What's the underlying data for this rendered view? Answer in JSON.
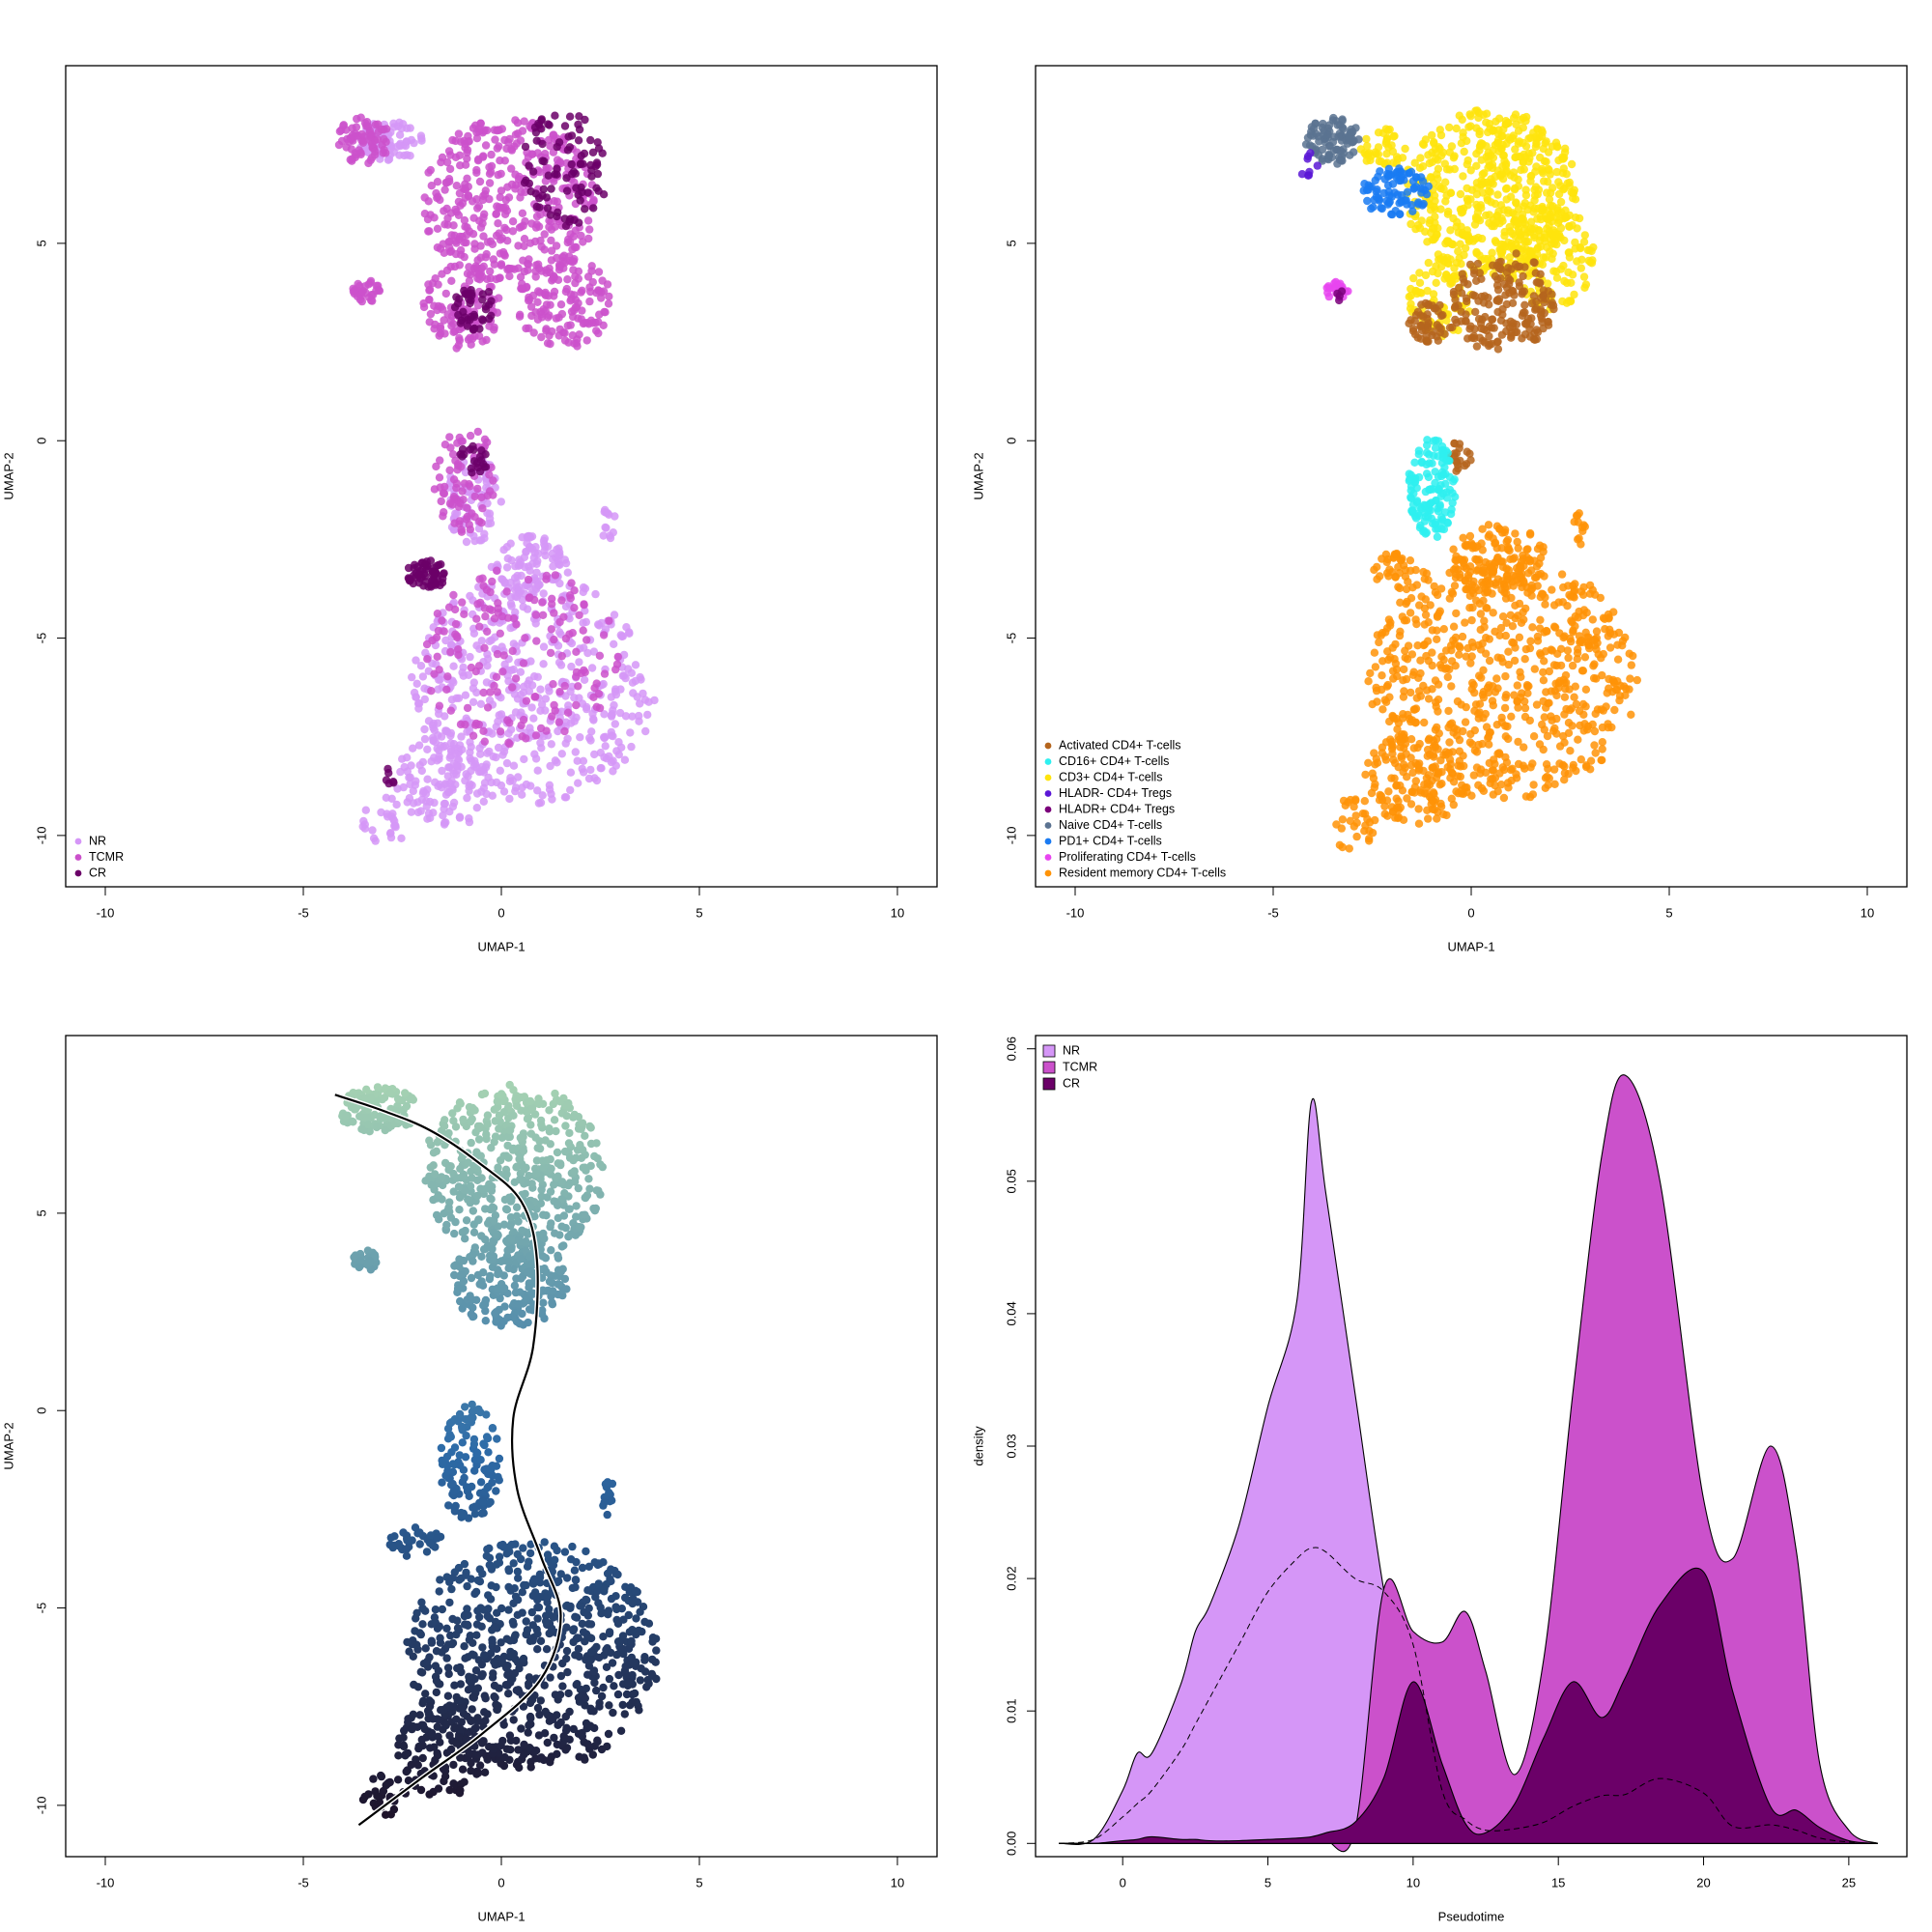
{
  "chart_data": [
    {
      "type": "scatter",
      "xlabel": "UMAP-1",
      "ylabel": "UMAP-2",
      "xlim": [
        -11,
        11
      ],
      "ylim": [
        -11.3,
        9.5
      ],
      "xticks": [
        -10,
        -5,
        0,
        5,
        10
      ],
      "yticks": [
        -10,
        -5,
        0,
        5
      ],
      "legend": {
        "placement": "bottom-left",
        "entries": [
          {
            "label": "NR",
            "color": "#D596F7"
          },
          {
            "label": "TCMR",
            "color": "#CB51CB"
          },
          {
            "label": "CR",
            "color": "#6B0068"
          }
        ]
      },
      "clusters": [
        {
          "name": "NR",
          "color": "#D596F7",
          "regions": [
            {
              "cx": 0.8,
              "cy": -6.3,
              "rx": 3.1,
              "ry": 2.9,
              "n": 520
            },
            {
              "cx": -1.4,
              "cy": -8.6,
              "rx": 1.3,
              "ry": 1.2,
              "n": 120
            },
            {
              "cx": -3.0,
              "cy": -9.7,
              "rx": 0.6,
              "ry": 0.7,
              "n": 25
            },
            {
              "cx": -0.7,
              "cy": -1.5,
              "rx": 0.7,
              "ry": 1.1,
              "n": 80
            },
            {
              "cx": -2.8,
              "cy": 7.6,
              "rx": 0.8,
              "ry": 0.5,
              "n": 80
            },
            {
              "cx": 0.7,
              "cy": -3.2,
              "rx": 1.0,
              "ry": 0.8,
              "n": 90
            },
            {
              "cx": 2.7,
              "cy": -2.2,
              "rx": 0.2,
              "ry": 0.5,
              "n": 12
            }
          ]
        },
        {
          "name": "TCMR",
          "color": "#CB51CB",
          "regions": [
            {
              "cx": 0.2,
              "cy": 6.0,
              "rx": 2.2,
              "ry": 2.2,
              "n": 420
            },
            {
              "cx": -1.0,
              "cy": 3.4,
              "rx": 1.0,
              "ry": 1.1,
              "n": 110
            },
            {
              "cx": 1.6,
              "cy": 3.5,
              "rx": 1.2,
              "ry": 1.2,
              "n": 130
            },
            {
              "cx": -3.5,
              "cy": 7.6,
              "rx": 0.7,
              "ry": 0.6,
              "n": 70
            },
            {
              "cx": -3.4,
              "cy": 3.8,
              "rx": 0.35,
              "ry": 0.3,
              "n": 30
            },
            {
              "cx": -0.9,
              "cy": -1.0,
              "rx": 0.8,
              "ry": 1.4,
              "n": 80
            },
            {
              "cx": 0.5,
              "cy": -5.5,
              "rx": 2.5,
              "ry": 2.3,
              "n": 160
            }
          ]
        },
        {
          "name": "CR",
          "color": "#6B0068",
          "regions": [
            {
              "cx": 1.6,
              "cy": 6.9,
              "rx": 1.1,
              "ry": 1.5,
              "n": 90
            },
            {
              "cx": -0.7,
              "cy": 3.4,
              "rx": 0.5,
              "ry": 0.6,
              "n": 40
            },
            {
              "cx": -1.9,
              "cy": -3.4,
              "rx": 0.5,
              "ry": 0.4,
              "n": 60
            },
            {
              "cx": -0.7,
              "cy": -0.5,
              "rx": 0.4,
              "ry": 0.4,
              "n": 20
            },
            {
              "cx": -2.8,
              "cy": -8.5,
              "rx": 0.2,
              "ry": 0.2,
              "n": 6
            }
          ]
        }
      ]
    },
    {
      "type": "scatter",
      "xlabel": "UMAP-1",
      "ylabel": "UMAP-2",
      "xlim": [
        -11,
        11
      ],
      "ylim": [
        -11.3,
        9.5
      ],
      "xticks": [
        -10,
        -5,
        0,
        5,
        10
      ],
      "yticks": [
        -10,
        -5,
        0,
        5
      ],
      "legend": {
        "placement": "bottom-left",
        "entries": [
          {
            "label": "Activated CD4+ T-cells",
            "color": "#B5651D"
          },
          {
            "label": "CD16+ CD4+ T-cells",
            "color": "#2EF0F0"
          },
          {
            "label": "CD3+ CD4+ T-cells",
            "color": "#FFE40D"
          },
          {
            "label": "HLADR- CD4+ Tregs",
            "color": "#5B17D6"
          },
          {
            "label": "HLADR+ CD4+ Tregs",
            "color": "#7A007A"
          },
          {
            "label": "Naive CD4+ T-cells",
            "color": "#5B7391"
          },
          {
            "label": "PD1+ CD4+ T-cells",
            "color": "#1A7BF2"
          },
          {
            "label": "Proliferating CD4+ T-cells",
            "color": "#E845F0"
          },
          {
            "label": "Resident memory CD4+ T-cells",
            "color": "#FF9307"
          }
        ]
      },
      "clusters": [
        {
          "name": "Resident memory CD4+ T-cells",
          "color": "#FF9307",
          "regions": [
            {
              "cx": 0.8,
              "cy": -6.0,
              "rx": 3.4,
              "ry": 3.1,
              "n": 700
            },
            {
              "cx": -1.4,
              "cy": -8.6,
              "rx": 1.3,
              "ry": 1.2,
              "n": 140
            },
            {
              "cx": -3.0,
              "cy": -9.7,
              "rx": 0.6,
              "ry": 0.7,
              "n": 30
            },
            {
              "cx": 0.7,
              "cy": -3.0,
              "rx": 1.2,
              "ry": 0.9,
              "n": 120
            },
            {
              "cx": -1.8,
              "cy": -3.3,
              "rx": 0.7,
              "ry": 0.5,
              "n": 40
            },
            {
              "cx": 2.7,
              "cy": -2.2,
              "rx": 0.2,
              "ry": 0.5,
              "n": 12
            }
          ]
        },
        {
          "name": "CD3+ CD4+ T-cells",
          "color": "#FFE40D",
          "regions": [
            {
              "cx": 0.5,
              "cy": 6.3,
              "rx": 2.2,
              "ry": 2.1,
              "n": 520
            },
            {
              "cx": 1.9,
              "cy": 4.7,
              "rx": 1.2,
              "ry": 1.4,
              "n": 150
            },
            {
              "cx": -0.8,
              "cy": 3.6,
              "rx": 0.8,
              "ry": 1.0,
              "n": 80
            },
            {
              "cx": -2.2,
              "cy": 7.4,
              "rx": 0.6,
              "ry": 0.5,
              "n": 40
            }
          ]
        },
        {
          "name": "Activated CD4+ T-cells",
          "color": "#B5651D",
          "regions": [
            {
              "cx": 0.8,
              "cy": 3.5,
              "rx": 1.3,
              "ry": 1.3,
              "n": 180
            },
            {
              "cx": -1.0,
              "cy": 3.0,
              "rx": 0.6,
              "ry": 0.5,
              "n": 50
            },
            {
              "cx": -0.3,
              "cy": -0.4,
              "rx": 0.3,
              "ry": 0.4,
              "n": 20
            }
          ]
        },
        {
          "name": "Naive CD4+ T-cells",
          "color": "#5B7391",
          "regions": [
            {
              "cx": -3.5,
              "cy": 7.6,
              "rx": 0.7,
              "ry": 0.6,
              "n": 90
            }
          ]
        },
        {
          "name": "PD1+ CD4+ T-cells",
          "color": "#1A7BF2",
          "regions": [
            {
              "cx": -1.9,
              "cy": 6.3,
              "rx": 0.9,
              "ry": 0.6,
              "n": 90
            }
          ]
        },
        {
          "name": "CD16+ CD4+ T-cells",
          "color": "#2EF0F0",
          "regions": [
            {
              "cx": -1.0,
              "cy": -1.2,
              "rx": 0.6,
              "ry": 1.3,
              "n": 130
            }
          ]
        },
        {
          "name": "Proliferating CD4+ T-cells",
          "color": "#E845F0",
          "regions": [
            {
              "cx": -3.4,
              "cy": 3.8,
              "rx": 0.3,
              "ry": 0.25,
              "n": 20
            }
          ]
        },
        {
          "name": "HLADR- CD4+ Tregs",
          "color": "#5B17D6",
          "regions": [
            {
              "cx": -4.1,
              "cy": 7.0,
              "rx": 0.3,
              "ry": 0.3,
              "n": 8
            }
          ]
        },
        {
          "name": "HLADR+ CD4+ Tregs",
          "color": "#7A007A",
          "regions": [
            {
              "cx": -3.3,
              "cy": 3.7,
              "rx": 0.15,
              "ry": 0.15,
              "n": 4
            }
          ]
        }
      ]
    },
    {
      "type": "scatter",
      "xlabel": "UMAP-1",
      "ylabel": "UMAP-2",
      "xlim": [
        -11,
        11
      ],
      "ylim": [
        -11.3,
        9.5
      ],
      "xticks": [
        -10,
        -5,
        0,
        5,
        10
      ],
      "yticks": [
        -10,
        -5,
        0,
        5
      ],
      "color_scale": {
        "low": "#1D1026",
        "mid": "#2D6BA8",
        "high": "#AAD6B3",
        "y_range": [
          -10.6,
          8.6
        ]
      },
      "trajectory": {
        "x": [
          -4.2,
          -3.0,
          -1.8,
          -0.6,
          0.5,
          0.9,
          0.8,
          0.3,
          0.4,
          1.0,
          1.5,
          1.0,
          -0.5,
          -2.0,
          -3.6
        ],
        "y": [
          8.0,
          7.6,
          7.1,
          6.3,
          5.3,
          3.8,
          1.6,
          -0.2,
          -2.0,
          -3.7,
          -5.2,
          -6.8,
          -8.2,
          -9.3,
          -10.5
        ]
      },
      "regions": [
        {
          "cx": 0.3,
          "cy": 6.0,
          "rx": 2.3,
          "ry": 2.3,
          "n": 520
        },
        {
          "cx": -3.1,
          "cy": 7.6,
          "rx": 1.0,
          "ry": 0.6,
          "n": 120
        },
        {
          "cx": -3.4,
          "cy": 3.8,
          "rx": 0.35,
          "ry": 0.3,
          "n": 30
        },
        {
          "cx": 0.2,
          "cy": 3.3,
          "rx": 1.5,
          "ry": 1.2,
          "n": 200
        },
        {
          "cx": -0.8,
          "cy": -1.3,
          "rx": 0.8,
          "ry": 1.5,
          "n": 120
        },
        {
          "cx": 0.8,
          "cy": -6.2,
          "rx": 3.2,
          "ry": 2.9,
          "n": 700
        },
        {
          "cx": -1.4,
          "cy": -8.6,
          "rx": 1.3,
          "ry": 1.2,
          "n": 140
        },
        {
          "cx": -3.0,
          "cy": -9.8,
          "rx": 0.6,
          "ry": 0.6,
          "n": 30
        },
        {
          "cx": -2.2,
          "cy": -3.3,
          "rx": 0.7,
          "ry": 0.4,
          "n": 40
        },
        {
          "cx": 2.7,
          "cy": -2.2,
          "rx": 0.2,
          "ry": 0.5,
          "n": 12
        }
      ]
    },
    {
      "type": "area",
      "xlabel": "Pseudotime",
      "ylabel": "density",
      "xlim": [
        -3,
        27
      ],
      "ylim": [
        -0.001,
        0.061
      ],
      "xticks": [
        0,
        5,
        10,
        15,
        20,
        25
      ],
      "yticks": [
        0.0,
        0.01,
        0.02,
        0.03,
        0.04,
        0.05,
        0.06
      ],
      "ytick_labels": [
        "0.00",
        "0.01",
        "0.02",
        "0.03",
        "0.04",
        "0.05",
        "0.06"
      ],
      "legend": {
        "placement": "top-left"
      },
      "x": [
        -2.2,
        -1,
        0,
        0.5,
        1,
        2,
        2.5,
        3,
        4,
        5,
        6,
        6.5,
        7,
        8,
        9,
        10,
        11,
        11.8,
        12.5,
        13.5,
        14.5,
        15.5,
        16.5,
        17.3,
        18.5,
        20,
        21,
        22.3,
        23.2,
        24,
        25,
        26
      ],
      "series": [
        {
          "name": "NR",
          "color": "#D596F7",
          "values": [
            0,
            0.0003,
            0.004,
            0.0068,
            0.0068,
            0.012,
            0.016,
            0.018,
            0.024,
            0.033,
            0.041,
            0.056,
            0.049,
            0.034,
            0.019,
            0.0085,
            0.0068,
            0.0105,
            0.004,
            0.001,
            0.0005,
            0.0004,
            0.0003,
            0.0002,
            0.0002,
            0.0001,
            0.0001,
            0,
            0,
            0,
            0,
            0
          ]
        },
        {
          "name": "TCMR",
          "color": "#CB51CB",
          "values": [
            0,
            0,
            0,
            0,
            0,
            0,
            0,
            0,
            0,
            0,
            0,
            0.0001,
            0.0002,
            0.001,
            0.0193,
            0.016,
            0.0152,
            0.0175,
            0.013,
            0.0052,
            0.014,
            0.034,
            0.052,
            0.058,
            0.05,
            0.026,
            0.0215,
            0.03,
            0.022,
            0.006,
            0.001,
            0
          ]
        },
        {
          "name": "CR",
          "color": "#6B0068",
          "values": [
            0,
            0,
            0.0002,
            0.0003,
            0.0005,
            0.0003,
            0.0003,
            0.0002,
            0.0002,
            0.0003,
            0.0004,
            0.0005,
            0.0008,
            0.0016,
            0.005,
            0.0122,
            0.006,
            0.0015,
            0.0008,
            0.003,
            0.008,
            0.0122,
            0.0095,
            0.0125,
            0.018,
            0.0205,
            0.0115,
            0.0028,
            0.0025,
            0.0012,
            0.0002,
            0
          ]
        }
      ],
      "dashed_series": {
        "values": [
          0,
          0.0003,
          0.002,
          0.003,
          0.004,
          0.007,
          0.009,
          0.011,
          0.015,
          0.019,
          0.0215,
          0.0223,
          0.022,
          0.02,
          0.019,
          0.015,
          0.004,
          0.0018,
          0.001,
          0.0011,
          0.0016,
          0.0028,
          0.0036,
          0.0037,
          0.0049,
          0.0038,
          0.0013,
          0.0014,
          0.001,
          0.0004,
          0.0001,
          0
        ]
      }
    }
  ]
}
